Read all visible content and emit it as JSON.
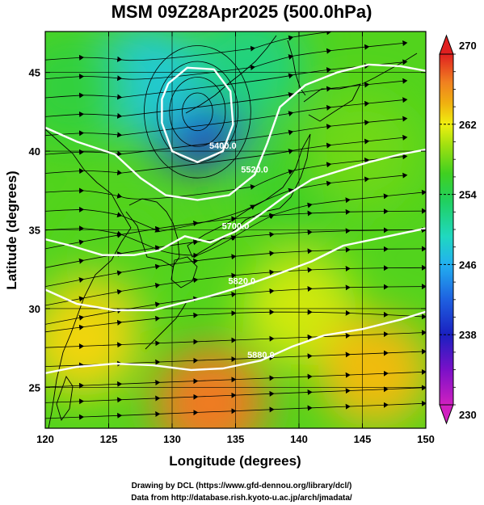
{
  "title": "MSM 09Z28Apr2025 (500.0hPa)",
  "credits": {
    "line1": "Drawing by DCL (https://www.gfd-dennou.org/library/dcl/)",
    "line2": "Data from http://database.rish.kyoto-u.ac.jp/arch/jmadata/"
  },
  "colors": {
    "scale": [
      "#d020c0",
      "#7a10c8",
      "#1a20c0",
      "#1e60e0",
      "#22b0f0",
      "#20d8c0",
      "#20d060",
      "#40d020",
      "#a0e010",
      "#f0f010",
      "#f0b010",
      "#f08020",
      "#f05020",
      "#e02020"
    ],
    "contour": "#ffffff",
    "streamline": "#000000"
  },
  "chart_data": {
    "type": "heatmap",
    "title": "MSM 09Z28Apr2025 (500.0hPa)",
    "xlabel": "Longitude (degrees)",
    "ylabel": "Latitude  (degrees)",
    "xlim": [
      120,
      150
    ],
    "ylim": [
      22.4,
      47.6
    ],
    "xticks": [
      120,
      125,
      130,
      135,
      140,
      145,
      150
    ],
    "yticks": [
      25,
      30,
      35,
      40,
      45
    ],
    "grid": true,
    "colorbar": {
      "min": 230,
      "max": 270,
      "ticks": [
        230,
        238,
        246,
        254,
        262,
        270
      ],
      "extend": "both"
    },
    "field_samples": [
      {
        "lon": 132,
        "lat": 42.5,
        "value": 239
      },
      {
        "lon": 128,
        "lat": 44.5,
        "value": 248
      },
      {
        "lon": 136,
        "lat": 45.5,
        "value": 252
      },
      {
        "lon": 122,
        "lat": 44,
        "value": 255
      },
      {
        "lon": 140,
        "lat": 38,
        "value": 256
      },
      {
        "lon": 126,
        "lat": 33,
        "value": 257
      },
      {
        "lon": 145,
        "lat": 40,
        "value": 258
      },
      {
        "lon": 140,
        "lat": 30,
        "value": 261
      },
      {
        "lon": 123,
        "lat": 28,
        "value": 263
      },
      {
        "lon": 146,
        "lat": 26,
        "value": 264
      },
      {
        "lon": 133,
        "lat": 24,
        "value": 267
      }
    ],
    "contours": [
      {
        "label": "5400.0",
        "points": [
          [
            129.7,
            44.3
          ],
          [
            131.2,
            45.3
          ],
          [
            133.3,
            45.2
          ],
          [
            134.6,
            43.8
          ],
          [
            134.8,
            41.7
          ],
          [
            134.0,
            40.0
          ],
          [
            132.0,
            39.3
          ],
          [
            130.0,
            40.0
          ],
          [
            129.2,
            41.8
          ],
          [
            129.2,
            43.3
          ],
          [
            129.7,
            44.3
          ]
        ]
      },
      {
        "label": "5520.0",
        "points": [
          [
            120,
            41.5
          ],
          [
            122.5,
            40.6
          ],
          [
            125.5,
            39.8
          ],
          [
            127.5,
            38.3
          ],
          [
            129.5,
            37.2
          ],
          [
            132.0,
            36.9
          ],
          [
            134.5,
            37.2
          ],
          [
            136.5,
            38.5
          ],
          [
            137.5,
            40.5
          ],
          [
            138.5,
            42.8
          ],
          [
            140.5,
            44.2
          ],
          [
            143.0,
            45.0
          ],
          [
            145.5,
            45.5
          ],
          [
            148.0,
            45.4
          ],
          [
            150,
            45.1
          ]
        ]
      },
      {
        "label": "5700.0",
        "points": [
          [
            120,
            34.4
          ],
          [
            122.0,
            34.0
          ],
          [
            124.5,
            33.4
          ],
          [
            127.0,
            33.4
          ],
          [
            129.0,
            33.7
          ],
          [
            131.0,
            34.6
          ],
          [
            133.0,
            34.2
          ],
          [
            135.0,
            34.9
          ],
          [
            137.0,
            36.0
          ],
          [
            139.0,
            37.2
          ],
          [
            141.0,
            38.2
          ],
          [
            143.0,
            38.7
          ],
          [
            145.5,
            39.3
          ],
          [
            148.0,
            39.8
          ],
          [
            150,
            40.1
          ]
        ]
      },
      {
        "label": "5820.0",
        "points": [
          [
            120,
            31.2
          ],
          [
            122.5,
            30.3
          ],
          [
            125.5,
            29.9
          ],
          [
            128.5,
            29.9
          ],
          [
            131.0,
            30.4
          ],
          [
            133.0,
            30.8
          ],
          [
            135.5,
            31.4
          ],
          [
            138.0,
            32.1
          ],
          [
            141.0,
            33.0
          ],
          [
            143.5,
            34.0
          ],
          [
            146.5,
            34.5
          ],
          [
            150,
            35.1
          ]
        ]
      },
      {
        "label": "5880.0",
        "points": [
          [
            120,
            25.9
          ],
          [
            122.5,
            26.3
          ],
          [
            125.5,
            26.5
          ],
          [
            128.5,
            26.4
          ],
          [
            131.5,
            26.1
          ],
          [
            134.0,
            26.2
          ],
          [
            137.0,
            26.7
          ],
          [
            139.5,
            27.6
          ],
          [
            142.0,
            28.3
          ],
          [
            145.0,
            28.7
          ],
          [
            148.0,
            29.3
          ],
          [
            150,
            29.8
          ]
        ]
      }
    ]
  }
}
